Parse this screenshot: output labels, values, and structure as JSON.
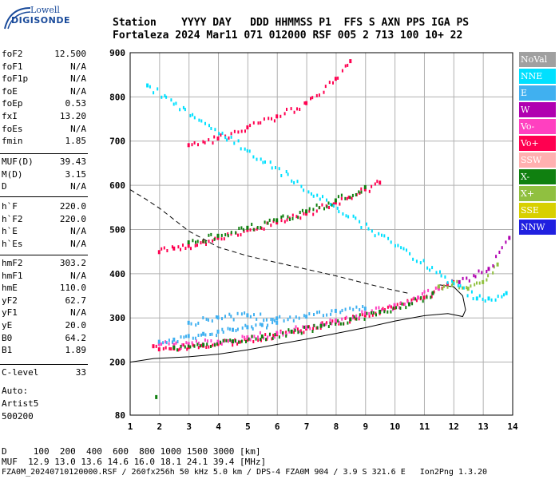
{
  "logo": {
    "top": "Lowell",
    "bottom": "DIGISONDE"
  },
  "header": {
    "line1": "Station    YYYY DAY   DDD HHMMSS P1  FFS S AXN PPS IGA PS",
    "line2": "Fortaleza 2024 Mar11 071 012000 RSF 005 2 713 100 10+ 22"
  },
  "params_group1": [
    {
      "name": "foF2",
      "value": "12.500"
    },
    {
      "name": "foF1",
      "value": "N/A"
    },
    {
      "name": "foF1p",
      "value": "N/A"
    },
    {
      "name": "foE",
      "value": "N/A"
    },
    {
      "name": "foEp",
      "value": "0.53"
    },
    {
      "name": "fxI",
      "value": "13.20"
    },
    {
      "name": "foEs",
      "value": "N/A"
    },
    {
      "name": "fmin",
      "value": "1.85"
    }
  ],
  "params_group2": [
    {
      "name": "MUF(D)",
      "value": "39.43"
    },
    {
      "name": "M(D)",
      "value": "3.15"
    },
    {
      "name": "D",
      "value": "N/A"
    }
  ],
  "params_group3": [
    {
      "name": "h`F",
      "value": "220.0"
    },
    {
      "name": "h`F2",
      "value": "220.0"
    },
    {
      "name": "h`E",
      "value": "N/A"
    },
    {
      "name": "h`Es",
      "value": "N/A"
    }
  ],
  "params_group4": [
    {
      "name": "hmF2",
      "value": "303.2"
    },
    {
      "name": "hmF1",
      "value": "N/A"
    },
    {
      "name": "hmE",
      "value": "110.0"
    },
    {
      "name": "yF2",
      "value": "62.7"
    },
    {
      "name": "yF1",
      "value": "N/A"
    },
    {
      "name": "yE",
      "value": "20.0"
    },
    {
      "name": "B0",
      "value": "64.2"
    },
    {
      "name": "B1",
      "value": "1.89"
    }
  ],
  "c_level": {
    "name": "C-level",
    "value": "33"
  },
  "auto": {
    "line1": "Auto:",
    "line2": "Artist5",
    "line3": "500200"
  },
  "legend": [
    {
      "label": "NoVal",
      "color": "#a0a0a0"
    },
    {
      "label": "NNE",
      "color": "#00e0ff"
    },
    {
      "label": "E",
      "color": "#40b0f0"
    },
    {
      "label": "W",
      "color": "#b000b0"
    },
    {
      "label": "Vo-",
      "color": "#ff40c0"
    },
    {
      "label": "Vo+",
      "color": "#ff0050"
    },
    {
      "label": "SSW",
      "color": "#ffb0b0"
    },
    {
      "label": "X-",
      "color": "#108010"
    },
    {
      "label": "X+",
      "color": "#90c040"
    },
    {
      "label": "SSE",
      "color": "#d8d000"
    },
    {
      "label": "NNW",
      "color": "#2020e0"
    }
  ],
  "footer": {
    "d_line": "D     100  200  400  600  800 1000 1500 3000 [km]",
    "muf_line": "MUF  12.9 13.0 13.6 14.6 16.0 18.1 24.1 39.4 [MHz]",
    "file_line": "FZA0M_20240710120000.RSF / 260fx256h 50 kHz 5.0 km / DPS-4 FZA0M 904 / 3.9 S 321.6 E   Ion2Png 1.3.20"
  },
  "chart_data": {
    "type": "scatter",
    "xlim": [
      1,
      14
    ],
    "ylim": [
      80,
      900
    ],
    "x_ticks": [
      1,
      2,
      3,
      4,
      5,
      6,
      7,
      8,
      9,
      10,
      11,
      12,
      13,
      14
    ],
    "y_ticks": [
      80,
      200,
      300,
      400,
      500,
      600,
      700,
      800,
      900
    ],
    "grid": true,
    "legend_position": "right",
    "lines": [
      {
        "name": "profile",
        "style": "solid",
        "x": [
          1.0,
          1.8,
          3,
          4,
          5,
          6,
          7,
          8,
          9,
          10,
          11,
          11.8,
          12.3,
          12.4,
          12.3,
          12.0,
          11.5
        ],
        "y": [
          200,
          208,
          212,
          218,
          228,
          240,
          252,
          265,
          278,
          293,
          305,
          310,
          303,
          318,
          350,
          370,
          375
        ]
      },
      {
        "name": "profile-dashed",
        "style": "dashed",
        "x": [
          1.0,
          1.5,
          2,
          2.5,
          3,
          3.5,
          4,
          5,
          6,
          7,
          8,
          9,
          9.8,
          10.5
        ],
        "y": [
          590,
          570,
          548,
          522,
          496,
          478,
          460,
          440,
          425,
          410,
          395,
          378,
          365,
          355
        ]
      }
    ],
    "traces": [
      {
        "series": "Vo+",
        "x": [
          1.8,
          2.0,
          2.5,
          3.0,
          3.5,
          4.0,
          5.0,
          6.0,
          7.0,
          8.0,
          9.0,
          10.0,
          11.0,
          11.8,
          12.0
        ],
        "y": [
          235,
          228,
          230,
          233,
          236,
          240,
          250,
          262,
          275,
          290,
          305,
          322,
          345,
          375,
          380
        ]
      },
      {
        "series": "Vo-",
        "x": [
          2.0,
          2.5,
          3.0,
          4.0,
          5.0,
          6.0,
          7.0,
          8.0,
          9.0,
          10.0,
          10.8,
          11.5
        ],
        "y": [
          240,
          238,
          240,
          245,
          255,
          265,
          278,
          293,
          310,
          328,
          345,
          365
        ]
      },
      {
        "series": "E",
        "x": [
          2.0,
          2.5,
          3.0,
          3.5,
          4.0,
          4.5,
          5.0,
          5.5,
          6.0
        ],
        "y": [
          245,
          250,
          258,
          263,
          268,
          272,
          278,
          283,
          288
        ]
      },
      {
        "series": "X-",
        "x": [
          2.5,
          3.5,
          4.5,
          5.5,
          6.5,
          7.5,
          8.5,
          9.5,
          10.5,
          11.3
        ],
        "y": [
          232,
          238,
          246,
          257,
          268,
          281,
          296,
          313,
          330,
          355
        ]
      },
      {
        "series": "Vo+",
        "x": [
          2.0,
          2.5,
          3.0,
          3.5,
          4.0,
          5.0,
          6.0,
          7.0,
          8.0,
          9.0,
          9.5
        ],
        "y": [
          448,
          456,
          462,
          472,
          480,
          498,
          515,
          535,
          560,
          590,
          605
        ]
      },
      {
        "series": "X-",
        "x": [
          3.0,
          4.0,
          5.0,
          6.0,
          7.0,
          8.0,
          9.0
        ],
        "y": [
          470,
          485,
          503,
          520,
          540,
          565,
          595
        ]
      },
      {
        "series": "Vo+",
        "x": [
          3.0,
          4.0,
          5.0,
          6.0,
          7.0,
          8.0,
          8.5
        ],
        "y": [
          690,
          705,
          730,
          755,
          785,
          840,
          880
        ]
      },
      {
        "series": "E",
        "x": [
          3.0,
          4.0,
          5.0,
          6.0,
          7.0,
          8.0,
          9.0
        ],
        "y": [
          288,
          300,
          305,
          298,
          302,
          315,
          320
        ]
      },
      {
        "series": "X+",
        "x": [
          11.5,
          12.0,
          12.5,
          13.0,
          13.5
        ],
        "y": [
          370,
          378,
          365,
          380,
          420
        ]
      },
      {
        "series": "W",
        "x": [
          12.2,
          13.2,
          13.9
        ],
        "y": [
          380,
          410,
          480
        ]
      },
      {
        "series": "NNE",
        "x": [
          1.6,
          12.8,
          13.2,
          13.8
        ],
        "y": [
          825,
          343,
          343,
          355
        ]
      },
      {
        "series": "X-",
        "x": [
          1.9
        ],
        "y": [
          120
        ]
      }
    ]
  }
}
